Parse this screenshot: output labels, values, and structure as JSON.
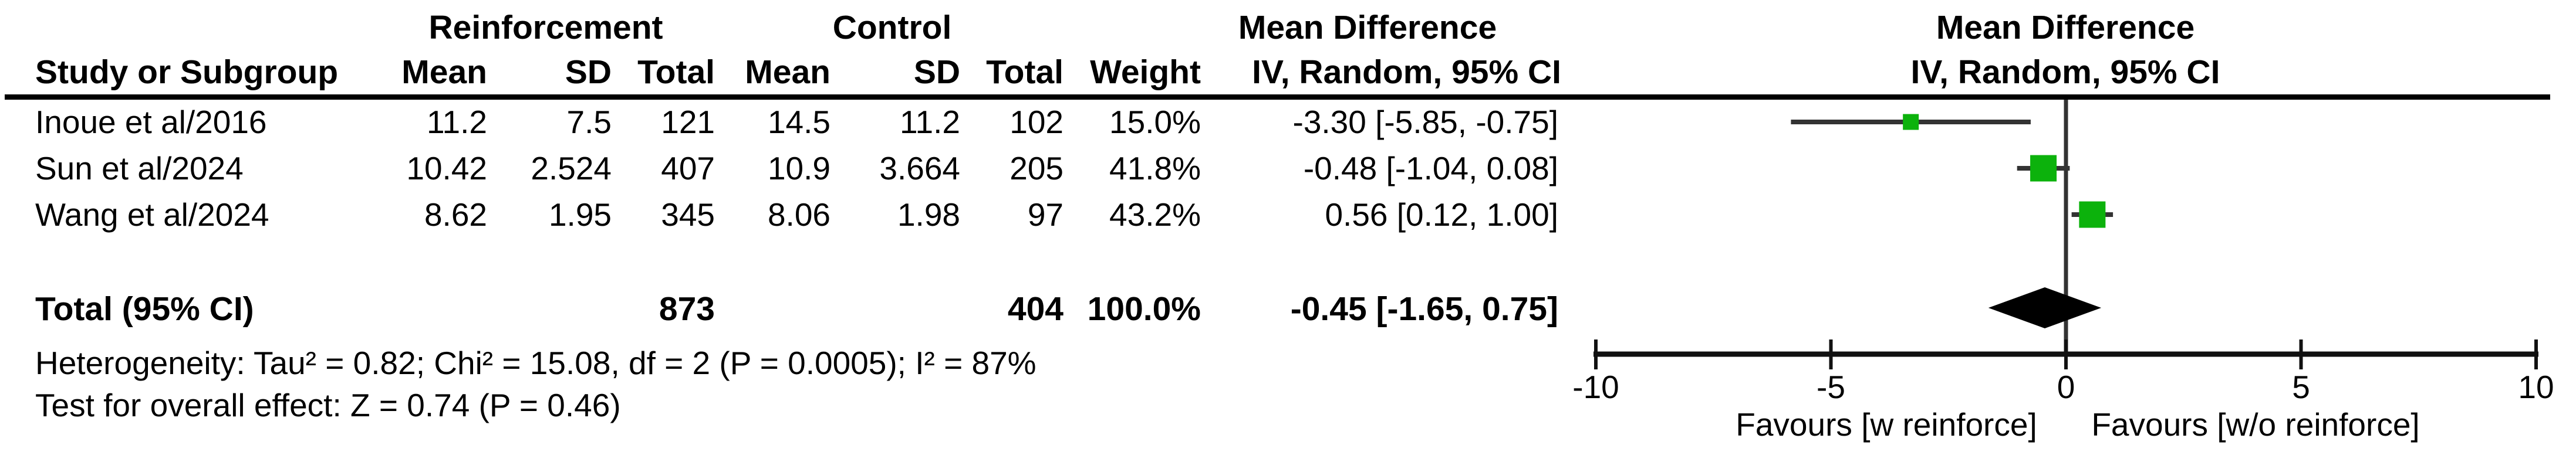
{
  "header": {
    "group1": "Reinforcement",
    "group2": "Control",
    "md_table": "Mean Difference",
    "md_plot": "Mean Difference",
    "col_study": "Study or Subgroup",
    "col_mean": "Mean",
    "col_sd": "SD",
    "col_total": "Total",
    "col_weight": "Weight",
    "col_ci": "IV, Random, 95% CI",
    "col_ci_plot": "IV, Random, 95% CI"
  },
  "footer": {
    "heterogeneity": "Heterogeneity: Tau² = 0.82; Chi² = 15.08, df = 2 (P = 0.0005); I² = 87%",
    "overall_effect": "Test for overall effect: Z = 0.74 (P = 0.46)"
  },
  "colors": {
    "square_green": "#0cb20c",
    "ci_line": "#333333",
    "axis_black": "#111111",
    "diamond": "#000000",
    "text": "#000000"
  },
  "chart_data": {
    "type": "forest",
    "effect_measure": "Mean Difference",
    "method": "IV, Random, 95% CI",
    "studies": [
      {
        "name": "Inoue et al/2016",
        "mean1": "11.2",
        "sd1": "7.5",
        "n1": "121",
        "mean2": "14.5",
        "sd2": "11.2",
        "n2": "102",
        "weight": "15.0%",
        "weight_pct": 15.0,
        "est": -3.3,
        "ci_low": -5.85,
        "ci_high": -0.75,
        "ci_label": "-3.30 [-5.85, -0.75]"
      },
      {
        "name": "Sun et al/2024",
        "mean1": "10.42",
        "sd1": "2.524",
        "n1": "407",
        "mean2": "10.9",
        "sd2": "3.664",
        "n2": "205",
        "weight": "41.8%",
        "weight_pct": 41.8,
        "est": -0.48,
        "ci_low": -1.04,
        "ci_high": 0.08,
        "ci_label": "-0.48 [-1.04, 0.08]"
      },
      {
        "name": "Wang et al/2024",
        "mean1": "8.62",
        "sd1": "1.95",
        "n1": "345",
        "mean2": "8.06",
        "sd2": "1.98",
        "n2": "97",
        "weight": "43.2%",
        "weight_pct": 43.2,
        "est": 0.56,
        "ci_low": 0.12,
        "ci_high": 1.0,
        "ci_label": "0.56 [0.12, 1.00]"
      }
    ],
    "total": {
      "label": "Total (95% CI)",
      "n1": "873",
      "n2": "404",
      "weight": "100.0%",
      "est": -0.45,
      "ci_low": -1.65,
      "ci_high": 0.75,
      "ci_label": "-0.45 [-1.65, 0.75]"
    },
    "xlim": [
      -10,
      10
    ],
    "xticks": [
      -10,
      -5,
      0,
      5,
      10
    ],
    "xlabel_left": "Favours [w reinforce]",
    "xlabel_right": "Favours [w/o reinforce]"
  }
}
